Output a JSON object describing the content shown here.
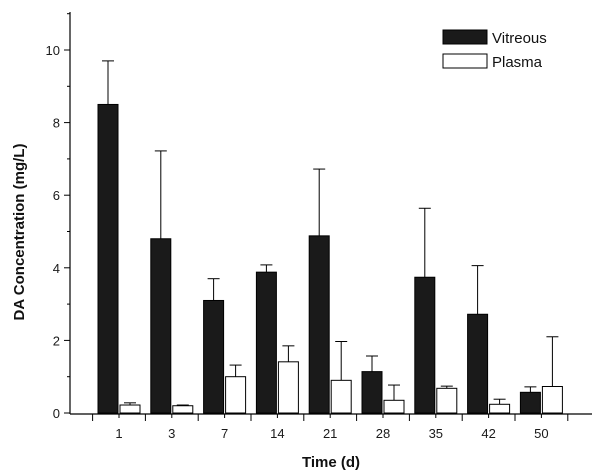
{
  "chart_data": {
    "type": "bar",
    "xlabel": "Time (d)",
    "ylabel": "DA Concentration (mg/L)",
    "categories": [
      "1",
      "3",
      "7",
      "14",
      "21",
      "28",
      "35",
      "42",
      "50"
    ],
    "ylim": [
      0,
      11
    ],
    "yticks": [
      "0",
      "2",
      "4",
      "6",
      "8",
      "10"
    ],
    "legend_position": "top-right",
    "series": [
      {
        "name": "Vitreous",
        "color": "#1a1a1a",
        "values": [
          8.5,
          4.8,
          3.1,
          3.88,
          4.88,
          1.14,
          3.74,
          2.72,
          0.57
        ],
        "error_upper": [
          9.7,
          7.22,
          3.7,
          4.08,
          6.72,
          1.57,
          5.64,
          4.06,
          0.72
        ]
      },
      {
        "name": "Plasma",
        "color": "#ffffff",
        "values": [
          0.22,
          0.2,
          1.0,
          1.41,
          0.9,
          0.35,
          0.68,
          0.24,
          0.73
        ],
        "error_upper": [
          0.28,
          0.22,
          1.32,
          1.85,
          1.97,
          0.77,
          0.74,
          0.38,
          2.1
        ]
      }
    ]
  }
}
